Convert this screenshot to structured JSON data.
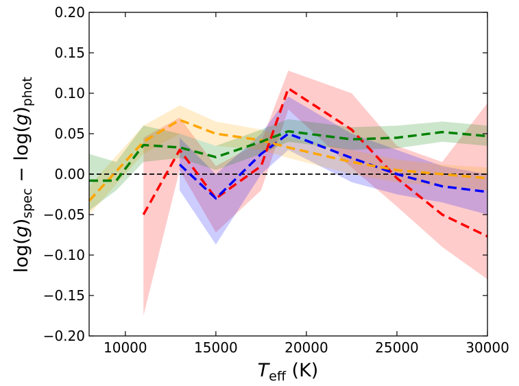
{
  "chart_data": {
    "type": "line",
    "title": "",
    "xlabel": {
      "main": "T",
      "sub": "eff",
      "unit": " (K)"
    },
    "ylabel": {
      "p1": "log(",
      "p2": "g",
      "p3": ")",
      "sub1": "spec",
      "p4": " − log(",
      "p5": "g",
      "p6": ")",
      "sub2": "phot"
    },
    "xlim": [
      8000,
      30000
    ],
    "ylim": [
      -0.2,
      0.2
    ],
    "xticks": [
      10000,
      15000,
      20000,
      25000,
      30000
    ],
    "xtick_labels": [
      "10000",
      "15000",
      "20000",
      "25000",
      "30000"
    ],
    "yticks": [
      -0.2,
      -0.15,
      -0.1,
      -0.05,
      0.0,
      0.05,
      0.1,
      0.15,
      0.2
    ],
    "ytick_labels": [
      "−0.20",
      "−0.15",
      "−0.10",
      "−0.05",
      "0.00",
      "0.05",
      "0.10",
      "0.15",
      "0.20"
    ],
    "reference_line": {
      "y": 0.0,
      "style": "dashed",
      "color": "#000000"
    },
    "series": [
      {
        "name": "red",
        "color": "#ff0000",
        "x": [
          11000,
          13000,
          15000,
          17500,
          19000,
          22500,
          25000,
          27500,
          30000
        ],
        "y": [
          -0.05,
          0.03,
          -0.03,
          0.01,
          0.106,
          0.055,
          -0.005,
          -0.05,
          -0.077
        ],
        "lower": [
          -0.175,
          0.005,
          -0.072,
          -0.02,
          0.08,
          0.008,
          -0.04,
          -0.09,
          -0.13
        ],
        "upper": [
          0.045,
          0.07,
          0.01,
          0.04,
          0.128,
          0.1,
          0.035,
          0.015,
          0.088
        ]
      },
      {
        "name": "blue",
        "color": "#0000ff",
        "x": [
          13000,
          15000,
          17500,
          19000,
          22500,
          25000,
          27500,
          30000
        ],
        "y": [
          0.012,
          -0.03,
          0.025,
          0.05,
          0.02,
          0.0,
          -0.015,
          -0.022
        ],
        "lower": [
          -0.02,
          -0.087,
          0.0,
          0.03,
          -0.01,
          -0.025,
          -0.035,
          -0.05
        ],
        "upper": [
          0.045,
          0.0,
          0.05,
          0.096,
          0.05,
          0.03,
          0.01,
          0.0
        ]
      },
      {
        "name": "orange",
        "color": "#ffa500",
        "x": [
          8000,
          11000,
          13000,
          15000,
          17500,
          19000,
          22500,
          25000,
          27500,
          30000
        ],
        "y": [
          -0.033,
          0.04,
          0.067,
          0.05,
          0.042,
          0.033,
          0.015,
          0.005,
          0.0,
          -0.005
        ],
        "lower": [
          -0.05,
          0.025,
          0.05,
          0.035,
          0.03,
          0.02,
          0.0,
          -0.01,
          -0.015,
          -0.02
        ],
        "upper": [
          -0.015,
          0.06,
          0.085,
          0.065,
          0.055,
          0.045,
          0.03,
          0.018,
          0.012,
          0.008
        ]
      },
      {
        "name": "green",
        "color": "#008000",
        "x": [
          8000,
          9500,
          11000,
          13000,
          15000,
          17500,
          19000,
          22500,
          25000,
          27500,
          30000
        ],
        "y": [
          -0.008,
          -0.008,
          0.036,
          0.033,
          0.021,
          0.04,
          0.053,
          0.043,
          0.045,
          0.052,
          0.047
        ],
        "lower": [
          -0.045,
          -0.02,
          0.015,
          0.02,
          0.005,
          0.025,
          0.04,
          0.03,
          0.032,
          0.04,
          0.035
        ],
        "upper": [
          0.025,
          0.015,
          0.06,
          0.05,
          0.035,
          0.055,
          0.068,
          0.058,
          0.06,
          0.065,
          0.06
        ]
      }
    ]
  }
}
